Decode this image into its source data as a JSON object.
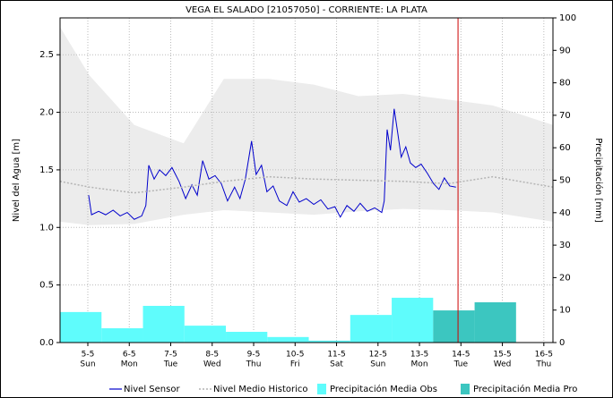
{
  "chart_data": {
    "type": "line",
    "title": "VEGA EL SALADO [21057050] - CORRIENTE: LA PLATA",
    "ylabel": "Nivel del Agua [m]",
    "y2label": "Precipitación [mm]",
    "xlim": [
      4.33,
      16.22
    ],
    "xticks": [
      {
        "value": 5,
        "label": "5-5"
      },
      {
        "value": 6,
        "label": "6-5"
      },
      {
        "value": 7,
        "label": "7-5"
      },
      {
        "value": 8,
        "label": "8-5"
      },
      {
        "value": 9,
        "label": "9-5"
      },
      {
        "value": 10,
        "label": "10-5"
      },
      {
        "value": 11,
        "label": "11-5"
      },
      {
        "value": 12,
        "label": "12-5"
      },
      {
        "value": 13,
        "label": "13-5"
      },
      {
        "value": 14,
        "label": "14-5"
      },
      {
        "value": 15,
        "label": "15-5"
      },
      {
        "value": 16,
        "label": "16-5"
      }
    ],
    "xtick_days": [
      "Sun",
      "Mon",
      "Tue",
      "Wed",
      "Thu",
      "Fri",
      "Sat",
      "Sun",
      "Mon",
      "Tue",
      "Wed",
      "Thu"
    ],
    "ylim": [
      0,
      2.82
    ],
    "yticks": [
      {
        "value": 0,
        "label": "0.0"
      },
      {
        "value": 0.5,
        "label": "0.5"
      },
      {
        "value": 1,
        "label": "1.0"
      },
      {
        "value": 1.5,
        "label": "1.5"
      },
      {
        "value": 2,
        "label": "2.0"
      },
      {
        "value": 2.5,
        "label": "2.5"
      }
    ],
    "y2lim": [
      0,
      100
    ],
    "y2ticks": [
      0,
      10,
      20,
      30,
      40,
      50,
      60,
      70,
      80,
      90,
      100
    ],
    "grid": true,
    "marker_x": 13.93,
    "marker_color": "#cc0000",
    "band": {
      "color": "#ececec",
      "x": [
        4.33,
        5.04,
        6.12,
        7.31,
        8.28,
        9.37,
        10.45,
        11.53,
        12.61,
        13.69,
        14.77,
        16.22
      ],
      "upper": [
        2.74,
        2.32,
        1.89,
        1.73,
        2.29,
        2.29,
        2.24,
        2.14,
        2.16,
        2.11,
        2.06,
        1.89
      ],
      "lower": [
        1.05,
        1.02,
        1.03,
        1.11,
        1.15,
        1.13,
        1.11,
        1.14,
        1.16,
        1.15,
        1.13,
        1.05
      ]
    },
    "series": [
      {
        "name": "Nivel Sensor",
        "kind": "line",
        "color": "#0000cc",
        "x": [
          5.02,
          5.09,
          5.26,
          5.43,
          5.61,
          5.78,
          5.95,
          6.12,
          6.3,
          6.4,
          6.47,
          6.6,
          6.73,
          6.88,
          7.03,
          7.2,
          7.36,
          7.51,
          7.64,
          7.77,
          7.92,
          8.07,
          8.22,
          8.37,
          8.54,
          8.67,
          8.8,
          8.95,
          9.06,
          9.19,
          9.32,
          9.47,
          9.62,
          9.8,
          9.95,
          10.1,
          10.27,
          10.45,
          10.62,
          10.79,
          10.96,
          11.09,
          11.25,
          11.42,
          11.57,
          11.74,
          11.92,
          12.09,
          12.15,
          12.22,
          12.3,
          12.39,
          12.48,
          12.56,
          12.67,
          12.78,
          12.91,
          13.04,
          13.19,
          13.34,
          13.47,
          13.6,
          13.73,
          13.88
        ],
        "values": [
          1.28,
          1.11,
          1.14,
          1.11,
          1.15,
          1.1,
          1.13,
          1.07,
          1.1,
          1.19,
          1.54,
          1.42,
          1.5,
          1.45,
          1.52,
          1.4,
          1.25,
          1.37,
          1.28,
          1.58,
          1.42,
          1.45,
          1.38,
          1.23,
          1.35,
          1.25,
          1.42,
          1.75,
          1.46,
          1.54,
          1.31,
          1.36,
          1.23,
          1.19,
          1.31,
          1.22,
          1.25,
          1.2,
          1.24,
          1.16,
          1.18,
          1.09,
          1.19,
          1.14,
          1.21,
          1.14,
          1.17,
          1.13,
          1.23,
          1.85,
          1.67,
          2.03,
          1.81,
          1.61,
          1.7,
          1.56,
          1.52,
          1.55,
          1.47,
          1.38,
          1.33,
          1.43,
          1.36,
          1.35
        ]
      },
      {
        "name": "Nivel Medio Historico",
        "kind": "line",
        "dash": true,
        "color": "#b4b4b4",
        "x": [
          4.33,
          5.04,
          6.12,
          7.31,
          8.28,
          9.37,
          10.45,
          11.53,
          12.61,
          13.69,
          14.77,
          16.22
        ],
        "values": [
          1.4,
          1.35,
          1.3,
          1.35,
          1.4,
          1.44,
          1.42,
          1.41,
          1.4,
          1.38,
          1.44,
          1.35
        ]
      },
      {
        "name": "Precipitación Media Obs",
        "kind": "bar",
        "axis": "y2",
        "color": "#5ffcfc",
        "x": [
          4.33,
          5.33,
          6.33,
          7.33,
          8.33,
          9.33,
          10.33,
          11.33,
          12.33
        ],
        "values": [
          9.4,
          4.4,
          11.3,
          5.2,
          3.3,
          1.7,
          0.6,
          8.5,
          13.8
        ]
      },
      {
        "name": "Precipitación Media Pro",
        "kind": "bar",
        "axis": "y2",
        "color": "#3cc6c0",
        "x": [
          13.33,
          14.33
        ],
        "values": [
          9.9,
          12.4
        ]
      }
    ]
  }
}
